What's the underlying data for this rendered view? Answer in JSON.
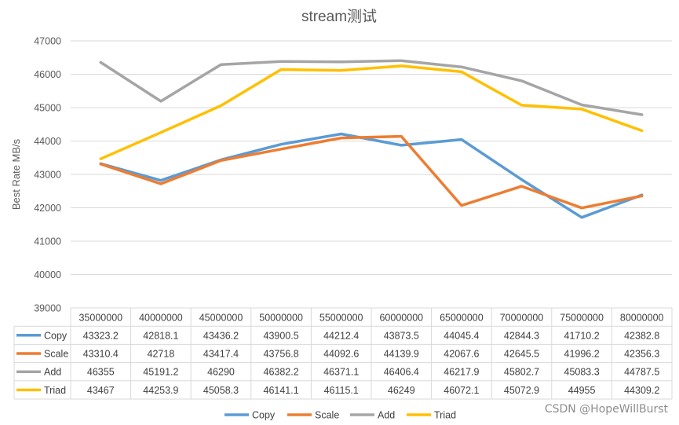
{
  "chart_data": {
    "type": "line",
    "title": "stream测试",
    "xlabel": "",
    "ylabel": "Best Rate MB/s",
    "ylim": [
      39000,
      47000
    ],
    "yticks": [
      "39000",
      "40000",
      "41000",
      "42000",
      "43000",
      "44000",
      "45000",
      "46000",
      "47000"
    ],
    "categories": [
      "35000000",
      "40000000",
      "45000000",
      "50000000",
      "55000000",
      "60000000",
      "65000000",
      "70000000",
      "75000000",
      "80000000"
    ],
    "legend_position": "bottom",
    "data_table": true,
    "grid": true,
    "series": [
      {
        "name": "Copy",
        "color": "#5b9bd5",
        "values": [
          43323.2,
          42818.1,
          43436.2,
          43900.5,
          44212.4,
          43873.5,
          44045.4,
          42844.3,
          41710.2,
          42382.8
        ],
        "labels": [
          "43323.2",
          "42818.1",
          "43436.2",
          "43900.5",
          "44212.4",
          "43873.5",
          "44045.4",
          "42844.3",
          "41710.2",
          "42382.8"
        ]
      },
      {
        "name": "Scale",
        "color": "#ed7d31",
        "values": [
          43310.4,
          42718,
          43417.4,
          43756.8,
          44092.6,
          44139.9,
          42067.6,
          42645.5,
          41996.2,
          42356.3
        ],
        "labels": [
          "43310.4",
          "42718",
          "43417.4",
          "43756.8",
          "44092.6",
          "44139.9",
          "42067.6",
          "42645.5",
          "41996.2",
          "42356.3"
        ]
      },
      {
        "name": "Add",
        "color": "#a5a5a5",
        "values": [
          46355,
          45191.2,
          46290,
          46382.2,
          46371.1,
          46406.4,
          46217.9,
          45802.7,
          45083.3,
          44787.5
        ],
        "labels": [
          "46355",
          "45191.2",
          "46290",
          "46382.2",
          "46371.1",
          "46406.4",
          "46217.9",
          "45802.7",
          "45083.3",
          "44787.5"
        ]
      },
      {
        "name": "Triad",
        "color": "#ffc000",
        "values": [
          43467,
          44253.9,
          45058.3,
          46141.1,
          46115.1,
          46249,
          46072.1,
          45072.9,
          44955,
          44309.2
        ],
        "labels": [
          "43467",
          "44253.9",
          "45058.3",
          "46141.1",
          "46115.1",
          "46249",
          "46072.1",
          "45072.9",
          "44955",
          "44309.2"
        ]
      }
    ]
  },
  "watermark": "CSDN @HopeWillBurst"
}
